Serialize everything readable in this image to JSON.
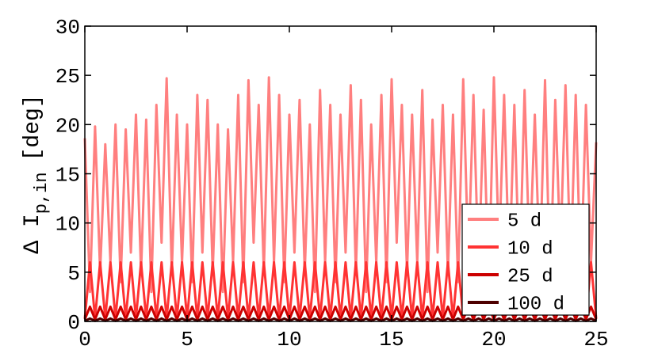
{
  "chart_data": {
    "type": "line",
    "ylabel": "Δ I",
    "ylabel_sub": "p,in",
    "ylabel_unit": "[deg]",
    "x": [
      0,
      0.25,
      0.5,
      0.75,
      1,
      1.25,
      1.5,
      1.75,
      2,
      2.25,
      2.5,
      2.75,
      3,
      3.25,
      3.5,
      3.75,
      4,
      4.25,
      4.5,
      4.75,
      5,
      5.25,
      5.5,
      5.75,
      6,
      6.25,
      6.5,
      6.75,
      7,
      7.25,
      7.5,
      7.75,
      8,
      8.25,
      8.5,
      8.75,
      9,
      9.25,
      9.5,
      9.75,
      10,
      10.25,
      10.5,
      10.75,
      11,
      11.25,
      11.5,
      11.75,
      12,
      12.25,
      12.5,
      12.75,
      13,
      13.25,
      13.5,
      13.75,
      14,
      14.25,
      14.5,
      14.75,
      15,
      15.25,
      15.5,
      15.75,
      16,
      16.25,
      16.5,
      16.75,
      17,
      17.25,
      17.5,
      17.75,
      18,
      18.25,
      18.5,
      18.75,
      19,
      19.25,
      19.5,
      19.75,
      20,
      20.25,
      20.5,
      20.75,
      21,
      21.25,
      21.5,
      21.75,
      22,
      22.25,
      22.5,
      22.75,
      23,
      23.25,
      23.5,
      23.75,
      24,
      24.25,
      24.5,
      24.75,
      25
    ],
    "series": [
      {
        "name": "5 d",
        "color": "#ff7f7f",
        "values": [
          18.6,
          3,
          19.8,
          5,
          18,
          6,
          20,
          4,
          19.5,
          7,
          21,
          5,
          20.5,
          3,
          22,
          8,
          24.7,
          5,
          21,
          6,
          20,
          4,
          23,
          7,
          22.5,
          5,
          20,
          3,
          19.5,
          6,
          23,
          4,
          24.5,
          8,
          22,
          5,
          24.8,
          6,
          23,
          4,
          21,
          7,
          22.5,
          5,
          20,
          3,
          23.5,
          6,
          22,
          4,
          21,
          7,
          24,
          5,
          22.5,
          3,
          20,
          6,
          23,
          4,
          24.6,
          8,
          22,
          5,
          21,
          6,
          23.5,
          3,
          20.5,
          7,
          22,
          5,
          21,
          4,
          24.6,
          6,
          23,
          5,
          21.5,
          3,
          24.8,
          7,
          23,
          5,
          22,
          4,
          23.5,
          6,
          21,
          5,
          24.5,
          3,
          22.5,
          7,
          24,
          5,
          23,
          4,
          22,
          6,
          18.2
        ]
      },
      {
        "name": "10 d",
        "color": "#ff3333",
        "values": [
          0.3,
          6,
          0.3,
          6,
          0.3,
          6,
          0.3,
          6,
          0.3,
          6,
          0.3,
          6,
          0.3,
          6,
          0.3,
          6,
          0.3,
          6,
          0.3,
          6,
          0.3,
          6,
          0.3,
          6,
          0.3,
          6,
          0.3,
          6,
          0.3,
          6,
          0.3,
          6,
          0.3,
          6,
          0.3,
          6,
          0.3,
          6,
          0.3,
          6,
          0.3,
          6,
          0.3,
          6,
          0.3,
          6,
          0.3,
          6,
          0.3,
          6,
          0.3,
          6,
          0.3,
          6,
          0.3,
          6,
          0.3,
          6,
          0.3,
          6,
          0.3,
          6,
          0.3,
          6,
          0.3,
          6,
          0.3,
          6,
          0.3,
          6,
          0.3,
          6,
          0.3,
          6,
          0.3,
          6,
          0.3,
          6,
          0.3,
          6,
          0.3,
          6,
          0.3,
          6,
          0.3,
          6,
          0.3,
          6,
          0.3,
          6,
          0.3,
          6,
          0.3,
          6,
          0.3,
          6,
          0.3,
          6,
          0.3,
          6,
          0.3
        ]
      },
      {
        "name": "25 d",
        "color": "#cc0000",
        "values": [
          0.2,
          1.5,
          0.2,
          1.5,
          0.2,
          1.5,
          0.2,
          1.5,
          0.2,
          1.5,
          0.2,
          1.5,
          0.2,
          1.5,
          0.2,
          1.5,
          0.2,
          1.5,
          0.2,
          1.5,
          0.2,
          1.5,
          0.2,
          1.5,
          0.2,
          1.5,
          0.2,
          1.5,
          0.2,
          1.5,
          0.2,
          1.5,
          0.2,
          1.5,
          0.2,
          1.5,
          0.2,
          1.5,
          0.2,
          1.5,
          0.2,
          1.5,
          0.2,
          1.5,
          0.2,
          1.5,
          0.2,
          1.5,
          0.2,
          1.5,
          0.2,
          1.5,
          0.2,
          1.5,
          0.2,
          1.5,
          0.2,
          1.5,
          0.2,
          1.5,
          0.2,
          1.5,
          0.2,
          1.5,
          0.2,
          1.5,
          0.2,
          1.5,
          0.2,
          1.5,
          0.2,
          1.5,
          0.2,
          1.5,
          0.2,
          1.5,
          0.2,
          1.5,
          0.2,
          1.5,
          0.2,
          1.5,
          0.2,
          1.5,
          0.2,
          1.5,
          0.2,
          1.5,
          0.2,
          1.5,
          0.2,
          1.5,
          0.2,
          1.5,
          0.2,
          1.5,
          0.2,
          1.5,
          0.2,
          1.5,
          0.2
        ]
      },
      {
        "name": "100 d",
        "color": "#4d0000",
        "values": [
          0.05,
          0.3,
          0.05,
          0.3,
          0.05,
          0.3,
          0.05,
          0.3,
          0.05,
          0.3,
          0.05,
          0.3,
          0.05,
          0.3,
          0.05,
          0.3,
          0.05,
          0.3,
          0.05,
          0.3,
          0.05,
          0.3,
          0.05,
          0.3,
          0.05,
          0.3,
          0.05,
          0.3,
          0.05,
          0.3,
          0.05,
          0.3,
          0.05,
          0.3,
          0.05,
          0.3,
          0.05,
          0.3,
          0.05,
          0.3,
          0.05,
          0.3,
          0.05,
          0.3,
          0.05,
          0.3,
          0.05,
          0.3,
          0.05,
          0.3,
          0.05,
          0.3,
          0.05,
          0.3,
          0.05,
          0.3,
          0.05,
          0.3,
          0.05,
          0.3,
          0.05,
          0.3,
          0.05,
          0.3,
          0.05,
          0.3,
          0.05,
          0.3,
          0.05,
          0.3,
          0.05,
          0.3,
          0.05,
          0.3,
          0.05,
          0.3,
          0.05,
          0.3,
          0.05,
          0.3,
          0.05,
          0.3,
          0.05,
          0.3,
          0.05,
          0.3,
          0.05,
          0.3,
          0.05,
          0.3,
          0.05,
          0.3,
          0.05,
          0.3,
          0.05,
          0.3,
          0.05,
          0.3,
          0.05,
          0.3,
          0.05
        ]
      }
    ],
    "xlim": [
      0,
      25
    ],
    "xticks": [
      0,
      5,
      10,
      15,
      20,
      25
    ],
    "ylim": [
      0,
      30
    ],
    "yticks": [
      0,
      5,
      10,
      15,
      20,
      25,
      30
    ],
    "grid": false,
    "legend": "lower right"
  }
}
